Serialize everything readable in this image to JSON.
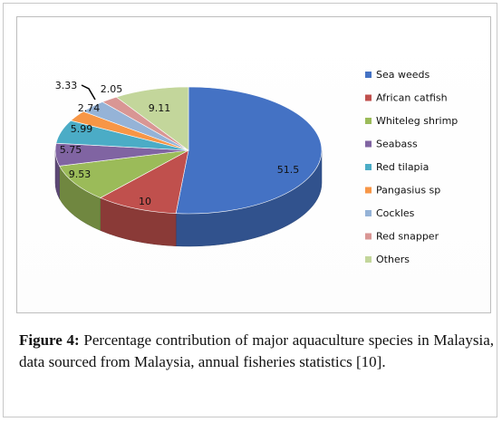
{
  "figure": {
    "label": "Figure 4:",
    "text": "Percentage contribution of major aquaculture species in Malaysia, data sourced from Malaysia, annual fisheries statistics [10]."
  },
  "chart_data": {
    "type": "pie",
    "style": "3d",
    "legend_position": "right",
    "slices": [
      {
        "name": "Sea weeds",
        "value": 51.5,
        "color": "#4472C4",
        "label": "51.5"
      },
      {
        "name": "African catfish",
        "value": 10,
        "color": "#C0504D",
        "label": "10"
      },
      {
        "name": "Whiteleg shrimp",
        "value": 9.53,
        "color": "#9BBB59",
        "label": "9.53"
      },
      {
        "name": "Seabass",
        "value": 5.75,
        "color": "#8064A2",
        "label": "5.75"
      },
      {
        "name": "Red tilapia",
        "value": 5.99,
        "color": "#4BACC6",
        "label": "5.99"
      },
      {
        "name": "Pangasius sp",
        "value": 2.74,
        "color": "#F79646",
        "label": "2.74"
      },
      {
        "name": "Cockles",
        "value": 3.33,
        "color": "#95B3D7",
        "label": "3.33"
      },
      {
        "name": "Red snapper",
        "value": 2.05,
        "color": "#D99694",
        "label": "2.05"
      },
      {
        "name": "Others",
        "value": 9.11,
        "color": "#C3D69B",
        "label": "9.11"
      }
    ]
  }
}
